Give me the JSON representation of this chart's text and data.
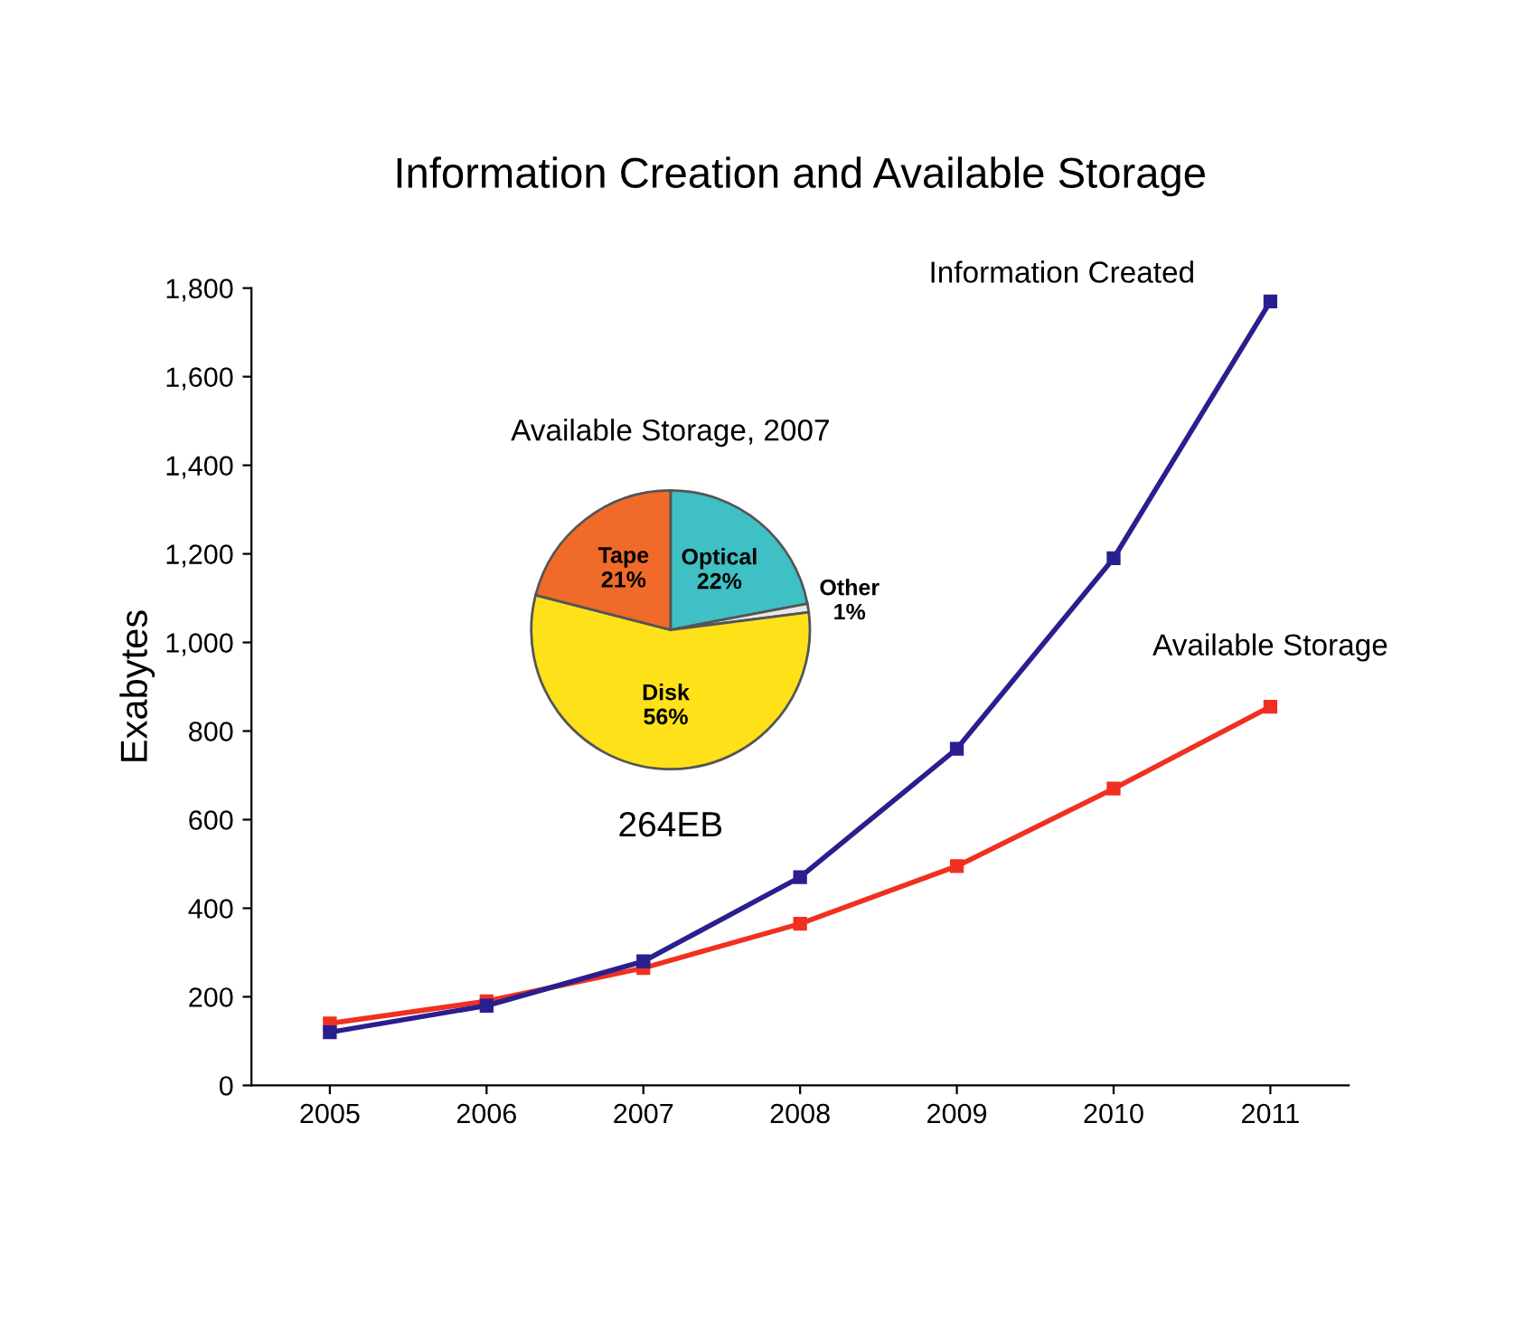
{
  "chart_data": [
    {
      "type": "line",
      "title": "Information Creation and Available Storage",
      "ylabel": "Exabytes",
      "categories": [
        "2005",
        "2006",
        "2007",
        "2008",
        "2009",
        "2010",
        "2011"
      ],
      "series": [
        {
          "name": "Information Created",
          "color": "#2a1f8f",
          "values": [
            120,
            180,
            280,
            470,
            760,
            1190,
            1770
          ]
        },
        {
          "name": "Available Storage",
          "color": "#f03020",
          "values": [
            140,
            190,
            265,
            365,
            495,
            670,
            855
          ]
        }
      ],
      "ylim": [
        0,
        1800
      ],
      "yticks": [
        0,
        200,
        400,
        600,
        800,
        {
          "value": 1000,
          "label": "1,000"
        },
        {
          "value": 1200,
          "label": "1,200"
        },
        {
          "value": 1400,
          "label": "1,400"
        },
        {
          "value": 1600,
          "label": "1,600"
        },
        {
          "value": 1800,
          "label": "1,800"
        }
      ],
      "marker": "square",
      "grid": false,
      "legend": false
    },
    {
      "type": "pie",
      "title": "Available Storage, 2007",
      "categories": [
        "Optical",
        "Other",
        "Disk",
        "Tape"
      ],
      "values": [
        22,
        1,
        56,
        21
      ],
      "colors": [
        "#3fc0c4",
        "#e8e8e8",
        "#ffe11a",
        "#f06a2a"
      ],
      "value_labels": [
        "22%",
        "1%",
        "56%",
        "21%"
      ],
      "annotations": [
        "264EB"
      ]
    }
  ]
}
